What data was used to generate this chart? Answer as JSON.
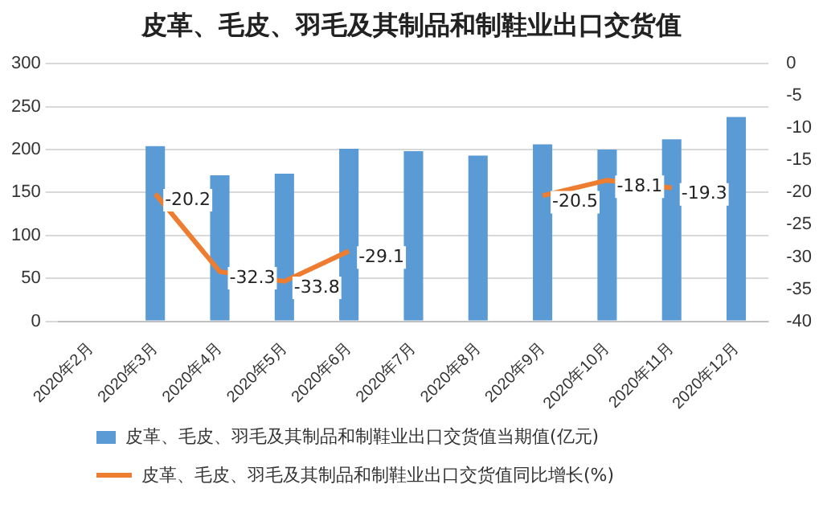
{
  "chart_data": {
    "type": "bar",
    "title": "皮革、毛皮、羽毛及其制品和制鞋业出口交货值",
    "categories": [
      "2020年2月",
      "2020年3月",
      "2020年4月",
      "2020年5月",
      "2020年6月",
      "2020年7月",
      "2020年8月",
      "2020年9月",
      "2020年10月",
      "2020年11月",
      "2020年12月"
    ],
    "series": [
      {
        "name": "皮革、毛皮、羽毛及其制品和制鞋业出口交货值当期值(亿元)",
        "color": "#5b9bd5",
        "values": [
          null,
          204,
          170,
          172,
          201,
          198,
          193,
          206,
          200,
          212,
          238
        ]
      },
      {
        "name": "皮革、毛皮、羽毛及其制品和制鞋业出口交货值同比增长(%)",
        "type": "line",
        "axis": "y2",
        "color": "#ed7d31",
        "values": [
          null,
          -20.2,
          -32.3,
          -33.8,
          -29.1,
          null,
          null,
          -20.5,
          -18.1,
          -19.3,
          null
        ],
        "value_labels": [
          null,
          "-20.2",
          "-32.3",
          "-33.8",
          "-29.1",
          null,
          null,
          "-20.5",
          "-18.1",
          "-19.3",
          null
        ]
      }
    ],
    "ylim": [
      0,
      300
    ],
    "yticks": [
      0,
      50,
      100,
      150,
      200,
      250,
      300
    ],
    "y2lim": [
      -40,
      0
    ],
    "y2ticks": [
      -40,
      -35,
      -30,
      -25,
      -20,
      -15,
      -10,
      -5,
      0
    ],
    "grid": "y",
    "legend": "bottom",
    "marker": "none"
  }
}
